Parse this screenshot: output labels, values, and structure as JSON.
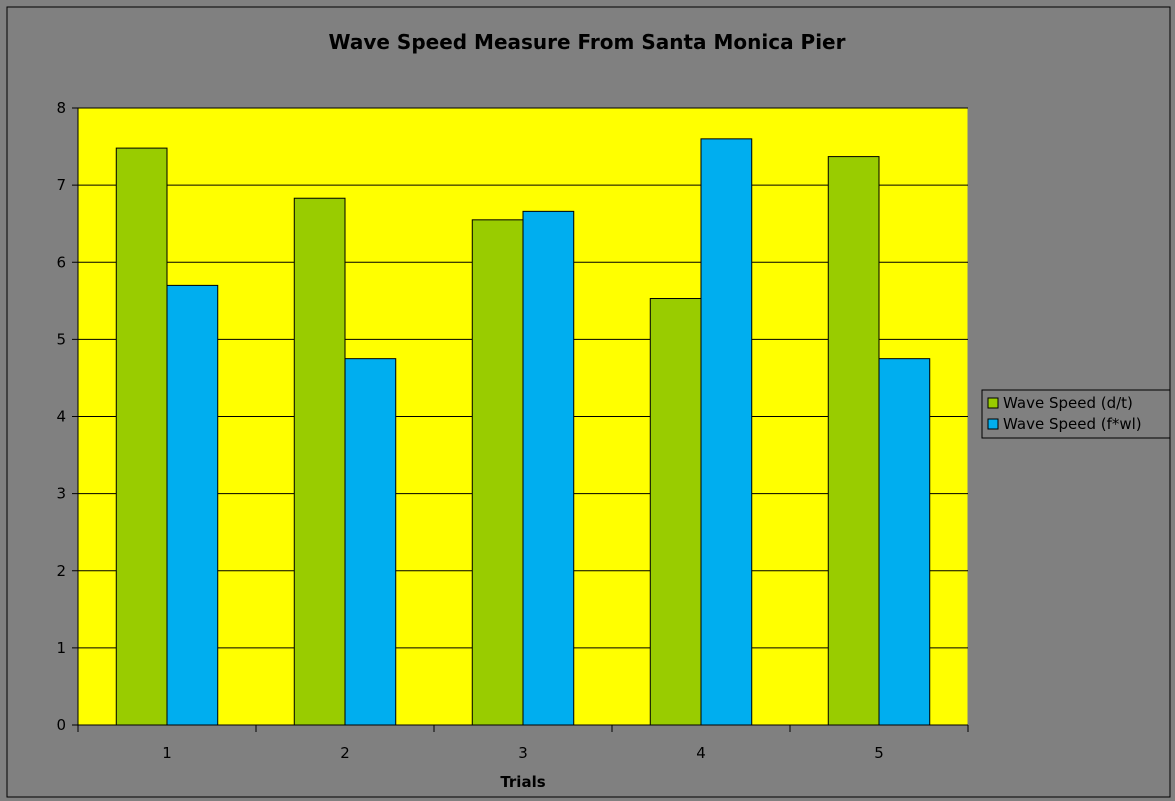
{
  "chart_data": {
    "type": "bar",
    "title": "Wave Speed Measure From Santa Monica Pier",
    "xlabel": "Trials",
    "ylabel": "",
    "categories": [
      "1",
      "2",
      "3",
      "4",
      "5"
    ],
    "series": [
      {
        "name": "Wave Speed (d/t)",
        "values": [
          7.48,
          6.83,
          6.55,
          5.53,
          7.37
        ],
        "color": "#99cc00"
      },
      {
        "name": "Wave Speed (f*wl)",
        "values": [
          5.7,
          4.75,
          6.66,
          7.6,
          4.75
        ],
        "color": "#00aeef"
      }
    ],
    "ylim": [
      0,
      8
    ],
    "yticks": [
      0,
      1,
      2,
      3,
      4,
      5,
      6,
      7,
      8
    ],
    "grid": true,
    "legend": "right",
    "colors": {
      "chart_background": "#808080",
      "plot_background": "#ffff00",
      "gridline": "#000000"
    }
  }
}
